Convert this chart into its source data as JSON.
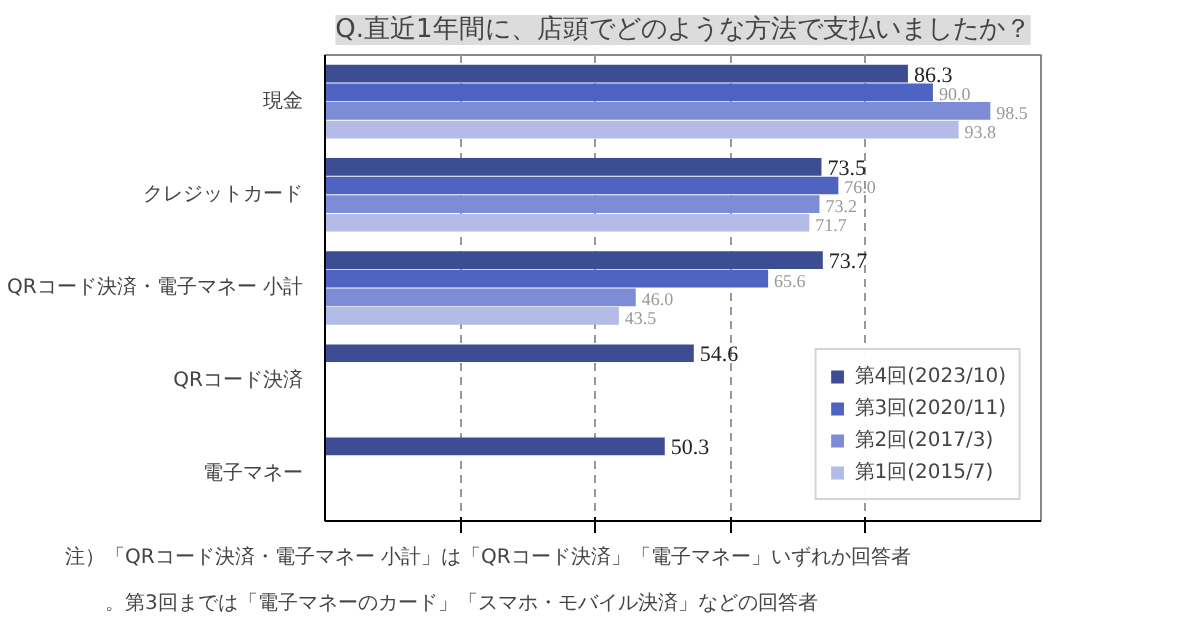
{
  "chart_data": {
    "type": "bar",
    "orientation": "horizontal",
    "title": "Q.直近1年間に、店頭でどのような方法で支払いましたか？",
    "categories": [
      "現金",
      "クレジットカード",
      "QRコード決済・電子マネー 小計",
      "QRコード決済",
      "電子マネー"
    ],
    "series": [
      {
        "name": "第4回(2023/10)",
        "color": "#3d4d94",
        "values": [
          86.3,
          73.5,
          73.7,
          54.6,
          50.3
        ],
        "value_labels": [
          "86.3",
          "73.5",
          "73.7",
          "54.6",
          "50.3"
        ]
      },
      {
        "name": "第3回(2020/11)",
        "color": "#4f63c2",
        "values": [
          90.0,
          76.0,
          65.6,
          null,
          null
        ],
        "value_labels": [
          "90.0",
          "76.0",
          "65.6",
          null,
          null
        ]
      },
      {
        "name": "第2回(2017/3)",
        "color": "#7d8cd6",
        "values": [
          98.5,
          73.2,
          46.0,
          null,
          null
        ],
        "value_labels": [
          "98.5",
          "73.2",
          "46.0",
          null,
          null
        ]
      },
      {
        "name": "第1回(2015/7)",
        "color": "#b3bbe6",
        "values": [
          93.8,
          71.7,
          43.5,
          null,
          null
        ],
        "value_labels": [
          "93.8",
          "71.7",
          "43.5",
          null,
          null
        ]
      }
    ],
    "xlim": [
      0,
      106
    ],
    "xticks": [
      {
        "value": 20,
        "label": null
      },
      {
        "value": 40,
        "label": null
      },
      {
        "value": 60,
        "label": null
      },
      {
        "value": 80,
        "label": null
      }
    ],
    "tick_labels": "y",
    "grid": "x",
    "legend": "bottom right",
    "annotations": [
      "注）「QRコード決済・電子マネー 小計」は「QRコード決済」「電子マネー」いずれか回答者。第3回までは「電子マネーのカード」「スマホ・モバイル決済」などの回答者"
    ]
  }
}
